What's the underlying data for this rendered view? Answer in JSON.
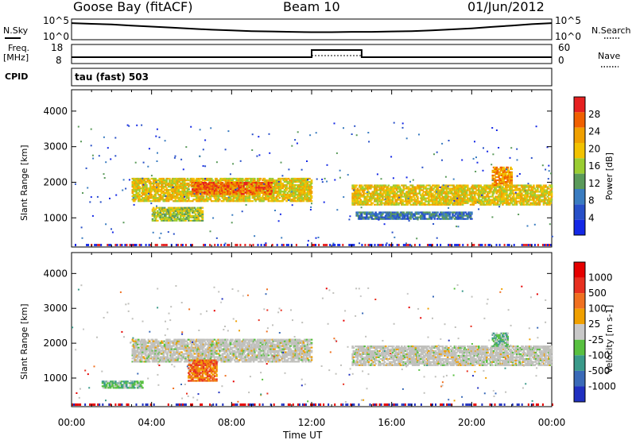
{
  "header": {
    "station": "Goose Bay (fitACF)",
    "beam": "Beam 10",
    "date": "01/Jun/2012"
  },
  "strip_labels": {
    "nsky": "N.Sky",
    "nsearch": "N.Search",
    "freq": "Freq.",
    "freq_unit": "[MHz]",
    "nave": "Nave",
    "cpid": "CPID",
    "cpid_value": "tau (fast) 503"
  },
  "noise_axis": {
    "left_ticks": [
      "10^5",
      "10^0"
    ],
    "right_ticks": [
      "10^5",
      "10^0"
    ]
  },
  "freq_axis": {
    "left_ticks": [
      "18",
      "8"
    ],
    "right_ticks": [
      "60",
      "0"
    ]
  },
  "colors": {
    "power": [
      "#1428e6",
      "#2850c8",
      "#3a7cc0",
      "#5a9a5a",
      "#9acd32",
      "#f2c200",
      "#f0a000",
      "#f06000",
      "#e62020"
    ],
    "velocity": [
      "#2030c0",
      "#3a6ab8",
      "#3a9a8a",
      "#58c040",
      "#c8c8c8",
      "#f0a000",
      "#f07020",
      "#e83020",
      "#e60000"
    ],
    "scatter_gray": "#c0c0bc"
  },
  "chart_data": [
    {
      "type": "line",
      "title": "",
      "xlabel": "",
      "ylabel": "N.Sky",
      "ylim_log10": [
        0,
        5
      ],
      "series": [
        {
          "name": "N.Sky",
          "x": [
            0,
            1,
            2,
            3,
            4,
            5,
            6,
            7,
            8,
            9,
            10,
            11,
            12,
            13,
            14,
            15,
            16,
            17,
            18,
            19,
            20,
            21,
            22,
            23,
            24
          ],
          "log10_values": [
            4.3,
            4.1,
            3.9,
            3.6,
            3.3,
            3.0,
            2.7,
            2.4,
            2.2,
            2.0,
            1.9,
            1.8,
            1.7,
            1.7,
            1.8,
            1.8,
            1.9,
            2.0,
            2.2,
            2.5,
            2.8,
            3.2,
            3.6,
            4.0,
            4.3
          ]
        }
      ]
    },
    {
      "type": "line",
      "title": "",
      "ylim_freq": [
        8,
        18
      ],
      "ylim_nave": [
        0,
        60
      ],
      "series": [
        {
          "name": "Freq.",
          "x": [
            0,
            12,
            12,
            14.5,
            14.5,
            24
          ],
          "values": [
            11,
            11,
            15.5,
            15.5,
            11,
            11
          ]
        },
        {
          "name": "Nave",
          "x": [
            12,
            14.5
          ],
          "values": [
            24,
            24
          ]
        }
      ]
    },
    {
      "type": "heatmap",
      "ylabel": "Slant Range [km]",
      "colorbar_label": "Power [dB]",
      "colorbar_ticks": [
        "28",
        "24",
        "20",
        "16",
        "12",
        "8",
        "4"
      ],
      "xlim": [
        0,
        24
      ],
      "ylim": [
        180,
        4600
      ],
      "yticks": [
        "4000",
        "3000",
        "2000",
        "1000"
      ],
      "bands": [
        {
          "t0": 3.0,
          "t1": 12.0,
          "r0": 1450,
          "r1": 2100,
          "level": 5
        },
        {
          "t0": 4.0,
          "t1": 6.5,
          "r0": 900,
          "r1": 1300,
          "level": 4
        },
        {
          "t0": 14.0,
          "t1": 24.0,
          "r0": 1350,
          "r1": 1900,
          "level": 5
        },
        {
          "t0": 14.2,
          "t1": 20.0,
          "r0": 950,
          "r1": 1150,
          "level": 2
        },
        {
          "t0": 6.0,
          "t1": 10.0,
          "r0": 1650,
          "r1": 2000,
          "level": 7
        },
        {
          "t0": 21.0,
          "t1": 22.0,
          "r0": 1900,
          "r1": 2400,
          "level": 6
        }
      ]
    },
    {
      "type": "heatmap",
      "ylabel": "Slant Range [km]",
      "colorbar_label": "Velocity [m s-1]",
      "colorbar_ticks": [
        "1000",
        "500",
        "100",
        "25",
        "-25",
        "-100",
        "-500",
        "-1000"
      ],
      "xlim": [
        0,
        24
      ],
      "ylim": [
        180,
        4600
      ],
      "yticks": [
        "4000",
        "3000",
        "2000",
        "1000"
      ],
      "xlabel": "Time UT",
      "xticks": [
        "00:00",
        "04:00",
        "08:00",
        "12:00",
        "16:00",
        "20:00",
        "00:00"
      ],
      "bands": [
        {
          "t0": 3.0,
          "t1": 12.0,
          "r0": 1450,
          "r1": 2100,
          "level": 4
        },
        {
          "t0": 14.0,
          "t1": 24.0,
          "r0": 1350,
          "r1": 1900,
          "level": 4
        },
        {
          "t0": 5.8,
          "t1": 7.2,
          "r0": 900,
          "r1": 1500,
          "level": 6
        },
        {
          "t0": 1.5,
          "t1": 3.5,
          "r0": 700,
          "r1": 900,
          "level": 3
        },
        {
          "t0": 21.0,
          "t1": 21.8,
          "r0": 1900,
          "r1": 2300,
          "level": 3
        }
      ]
    }
  ]
}
